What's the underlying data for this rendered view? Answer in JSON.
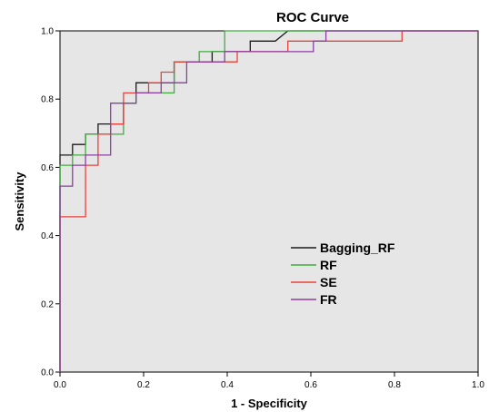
{
  "chart_data": {
    "type": "line",
    "title": "ROC Curve",
    "xlabel": "1 - Specificity",
    "ylabel": "Sensitivity",
    "xlim": [
      0,
      1
    ],
    "ylim": [
      0,
      1
    ],
    "xticks": [
      "0.0",
      "0.2",
      "0.4",
      "0.6",
      "0.8",
      "1.0"
    ],
    "yticks": [
      "0.0",
      "0.2",
      "0.4",
      "0.6",
      "0.8",
      "1.0"
    ],
    "grid": false,
    "plot_background": "#e6e6e6",
    "legend_position": "lower-right",
    "series": [
      {
        "name": "Bagging_RF",
        "color": "#1a1a1a",
        "points": [
          [
            0,
            0
          ],
          [
            0,
            0.636
          ],
          [
            0.03,
            0.636
          ],
          [
            0.03,
            0.667
          ],
          [
            0.061,
            0.667
          ],
          [
            0.061,
            0.697
          ],
          [
            0.091,
            0.697
          ],
          [
            0.091,
            0.727
          ],
          [
            0.152,
            0.727
          ],
          [
            0.152,
            0.788
          ],
          [
            0.182,
            0.788
          ],
          [
            0.182,
            0.848
          ],
          [
            0.273,
            0.848
          ],
          [
            0.273,
            0.909
          ],
          [
            0.364,
            0.909
          ],
          [
            0.364,
            0.939
          ],
          [
            0.455,
            0.939
          ],
          [
            0.455,
            0.97
          ],
          [
            0.515,
            0.97
          ],
          [
            0.545,
            1.0
          ],
          [
            1.0,
            1.0
          ]
        ]
      },
      {
        "name": "RF",
        "color": "#3fae3f",
        "points": [
          [
            0,
            0
          ],
          [
            0,
            0.606
          ],
          [
            0.03,
            0.606
          ],
          [
            0.03,
            0.636
          ],
          [
            0.061,
            0.636
          ],
          [
            0.061,
            0.697
          ],
          [
            0.152,
            0.697
          ],
          [
            0.152,
            0.788
          ],
          [
            0.182,
            0.788
          ],
          [
            0.182,
            0.818
          ],
          [
            0.273,
            0.818
          ],
          [
            0.273,
            0.909
          ],
          [
            0.333,
            0.909
          ],
          [
            0.333,
            0.939
          ],
          [
            0.394,
            0.939
          ],
          [
            0.394,
            1.0
          ],
          [
            1.0,
            1.0
          ]
        ]
      },
      {
        "name": "SE",
        "color": "#e8433c",
        "points": [
          [
            0,
            0
          ],
          [
            0,
            0.455
          ],
          [
            0.061,
            0.455
          ],
          [
            0.061,
            0.606
          ],
          [
            0.091,
            0.606
          ],
          [
            0.091,
            0.697
          ],
          [
            0.121,
            0.697
          ],
          [
            0.121,
            0.727
          ],
          [
            0.152,
            0.727
          ],
          [
            0.152,
            0.818
          ],
          [
            0.212,
            0.818
          ],
          [
            0.212,
            0.848
          ],
          [
            0.242,
            0.848
          ],
          [
            0.242,
            0.879
          ],
          [
            0.273,
            0.879
          ],
          [
            0.273,
            0.909
          ],
          [
            0.424,
            0.909
          ],
          [
            0.424,
            0.939
          ],
          [
            0.545,
            0.939
          ],
          [
            0.545,
            0.97
          ],
          [
            0.818,
            0.97
          ],
          [
            0.818,
            1.0
          ],
          [
            1.0,
            1.0
          ]
        ]
      },
      {
        "name": "FR",
        "color": "#8b3fa0",
        "points": [
          [
            0,
            0
          ],
          [
            0,
            0.545
          ],
          [
            0.03,
            0.545
          ],
          [
            0.03,
            0.606
          ],
          [
            0.061,
            0.606
          ],
          [
            0.061,
            0.636
          ],
          [
            0.121,
            0.636
          ],
          [
            0.121,
            0.788
          ],
          [
            0.182,
            0.788
          ],
          [
            0.182,
            0.818
          ],
          [
            0.242,
            0.818
          ],
          [
            0.242,
            0.848
          ],
          [
            0.303,
            0.848
          ],
          [
            0.303,
            0.909
          ],
          [
            0.394,
            0.909
          ],
          [
            0.394,
            0.939
          ],
          [
            0.606,
            0.939
          ],
          [
            0.606,
            0.97
          ],
          [
            0.636,
            0.97
          ],
          [
            0.636,
            1.0
          ],
          [
            1.0,
            1.0
          ]
        ]
      }
    ]
  }
}
